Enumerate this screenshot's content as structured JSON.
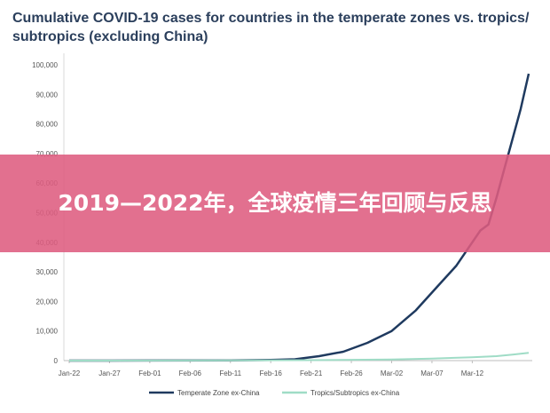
{
  "banner": {
    "text": "2019—2022年，全球疫情三年回顾与反思"
  },
  "chart_data": {
    "type": "line",
    "title": "Cumulative COVID-19 cases for countries in the temperate zones vs. tropics/ subtropics (excluding China)",
    "xlabel": "",
    "ylabel": "",
    "x_ticks": [
      "Jan-22",
      "Jan-27",
      "Feb-01",
      "Feb-06",
      "Feb-11",
      "Feb-16",
      "Feb-21",
      "Feb-26",
      "Mar-02",
      "Mar-07",
      "Mar-12"
    ],
    "y_ticks": [
      "0",
      "10,000",
      "20,000",
      "30,000",
      "40,000",
      "50,000",
      "60,000",
      "70,000",
      "80,000",
      "90,000",
      "100,000"
    ],
    "ylim": [
      0,
      100000
    ],
    "grid": false,
    "legend_position": "bottom",
    "series": [
      {
        "name": "Temperate Zone ex-China",
        "color": "#1f3a5f",
        "points": [
          [
            0,
            0
          ],
          [
            10,
            20
          ],
          [
            20,
            100
          ],
          [
            25,
            200
          ],
          [
            28,
            450
          ],
          [
            31,
            1500
          ],
          [
            34,
            3000
          ],
          [
            37,
            6000
          ],
          [
            40,
            10000
          ],
          [
            43,
            17000
          ],
          [
            46,
            26000
          ],
          [
            48,
            32000
          ],
          [
            50,
            40000
          ],
          [
            51,
            44000
          ],
          [
            52,
            46000
          ],
          [
            53,
            55000
          ],
          [
            54,
            65000
          ],
          [
            55,
            75000
          ],
          [
            56,
            85000
          ],
          [
            57,
            97000
          ]
        ]
      },
      {
        "name": "Tropics/Subtropics ex-China",
        "color": "#9fdcc6",
        "points": [
          [
            0,
            0
          ],
          [
            20,
            50
          ],
          [
            30,
            150
          ],
          [
            40,
            400
          ],
          [
            45,
            700
          ],
          [
            50,
            1100
          ],
          [
            53,
            1500
          ],
          [
            55,
            2000
          ],
          [
            57,
            2600
          ]
        ]
      }
    ]
  }
}
